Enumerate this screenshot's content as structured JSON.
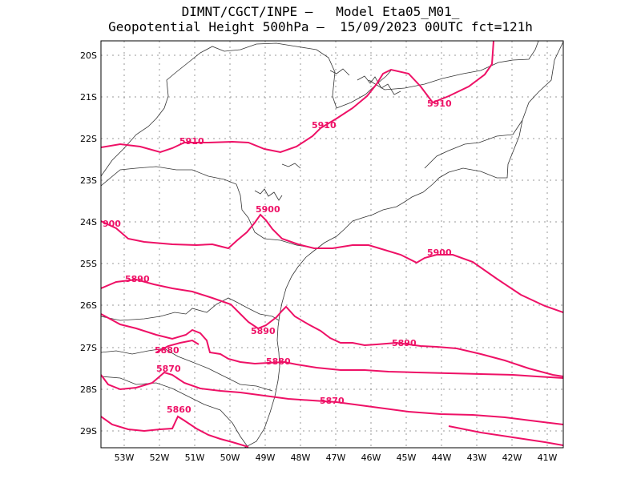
{
  "title": {
    "line1": "DIMNT/CGCT/INPE —   Model Eta05_M01_",
    "line2": "Geopotential Height 500hPa —  15/09/2023 00UTC fct=121h"
  },
  "colors": {
    "contour": "#ee1166",
    "coast": "#333333",
    "grid": "#999999",
    "frame": "#000000"
  },
  "axes": {
    "lon_labels": [
      "53W",
      "52W",
      "51W",
      "50W",
      "49W",
      "48W",
      "47W",
      "46W",
      "45W",
      "44W",
      "43W",
      "42W",
      "41W"
    ],
    "lat_labels": [
      "20S",
      "21S",
      "22S",
      "23S",
      "24S",
      "25S",
      "26S",
      "27S",
      "28S",
      "29S"
    ]
  },
  "contour_labels": [
    {
      "text": "5910"
    },
    {
      "text": "5910"
    },
    {
      "text": "5910"
    },
    {
      "text": "5900"
    },
    {
      "text": "900"
    },
    {
      "text": "5900"
    },
    {
      "text": "5890"
    },
    {
      "text": "5890"
    },
    {
      "text": "5890"
    },
    {
      "text": "5880"
    },
    {
      "text": "5880"
    },
    {
      "text": "5870"
    },
    {
      "text": "5870"
    },
    {
      "text": "5860"
    }
  ]
}
